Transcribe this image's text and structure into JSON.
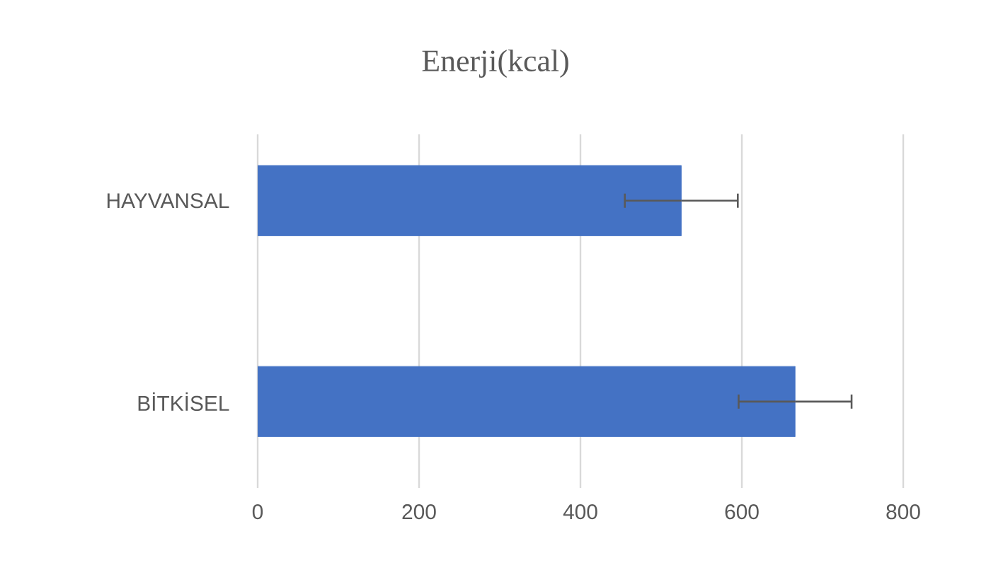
{
  "chart_data": {
    "type": "bar",
    "orientation": "horizontal",
    "title": "Enerji(kcal)",
    "categories": [
      "HAYVANSAL",
      "BİTKİSEL"
    ],
    "values": [
      525,
      666
    ],
    "errors": [
      70,
      70
    ],
    "color": "#4472c4",
    "xlim": [
      0,
      800
    ],
    "xticks": [
      0,
      200,
      400,
      600,
      800
    ],
    "grid": "x"
  }
}
